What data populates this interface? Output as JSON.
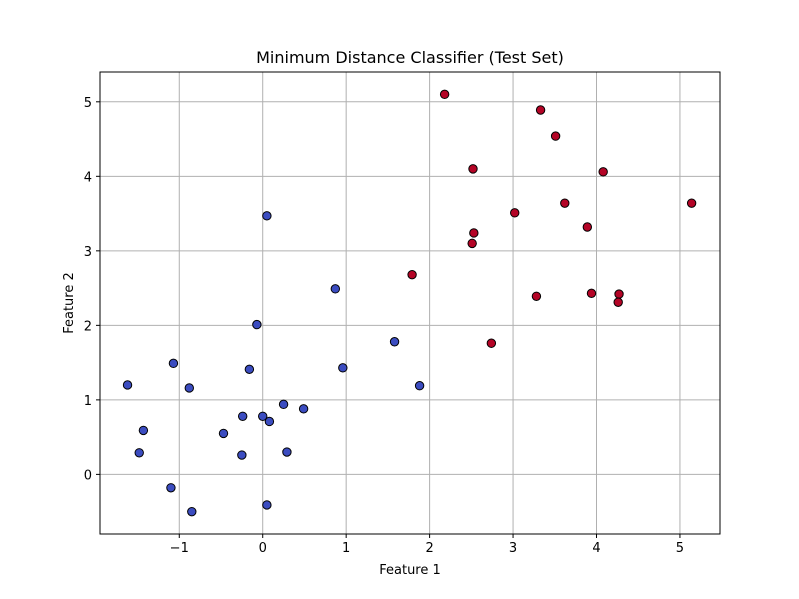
{
  "chart_data": {
    "type": "scatter",
    "title": "Minimum Distance Classifier (Test Set)",
    "xlabel": "Feature 1",
    "ylabel": "Feature 2",
    "xlim": [
      -1.95,
      5.48
    ],
    "ylim": [
      -0.8,
      5.4
    ],
    "xticks": [
      -1,
      0,
      1,
      2,
      3,
      4,
      5
    ],
    "yticks": [
      0,
      1,
      2,
      3,
      4,
      5
    ],
    "grid": true,
    "colors": {
      "class_0": "#3b4cc0",
      "class_1": "#b40426",
      "edge": "#000000",
      "grid": "#b0b0b0"
    },
    "series": [
      {
        "class": 0,
        "points": [
          [
            -1.62,
            1.2
          ],
          [
            -1.07,
            1.49
          ],
          [
            -0.88,
            1.16
          ],
          [
            -1.43,
            0.59
          ],
          [
            -1.48,
            0.29
          ],
          [
            -1.1,
            -0.18
          ],
          [
            -0.85,
            -0.5
          ],
          [
            -0.47,
            0.55
          ],
          [
            -0.25,
            0.26
          ],
          [
            -0.24,
            0.78
          ],
          [
            -0.16,
            1.41
          ],
          [
            -0.07,
            2.01
          ],
          [
            0.0,
            0.78
          ],
          [
            0.05,
            3.47
          ],
          [
            0.08,
            0.71
          ],
          [
            0.05,
            -0.41
          ],
          [
            0.25,
            0.94
          ],
          [
            0.29,
            0.3
          ],
          [
            0.49,
            0.88
          ],
          [
            0.87,
            2.49
          ],
          [
            0.96,
            1.43
          ],
          [
            1.58,
            1.78
          ],
          [
            1.88,
            1.19
          ]
        ]
      },
      {
        "class": 1,
        "points": [
          [
            2.18,
            5.1
          ],
          [
            3.33,
            4.89
          ],
          [
            3.51,
            4.54
          ],
          [
            2.52,
            4.1
          ],
          [
            4.08,
            4.06
          ],
          [
            3.62,
            3.64
          ],
          [
            5.14,
            3.64
          ],
          [
            3.02,
            3.51
          ],
          [
            3.89,
            3.32
          ],
          [
            2.53,
            3.24
          ],
          [
            2.51,
            3.1
          ],
          [
            1.79,
            2.68
          ],
          [
            3.94,
            2.43
          ],
          [
            4.27,
            2.42
          ],
          [
            3.28,
            2.39
          ],
          [
            4.26,
            2.31
          ],
          [
            2.74,
            1.76
          ]
        ]
      }
    ]
  }
}
